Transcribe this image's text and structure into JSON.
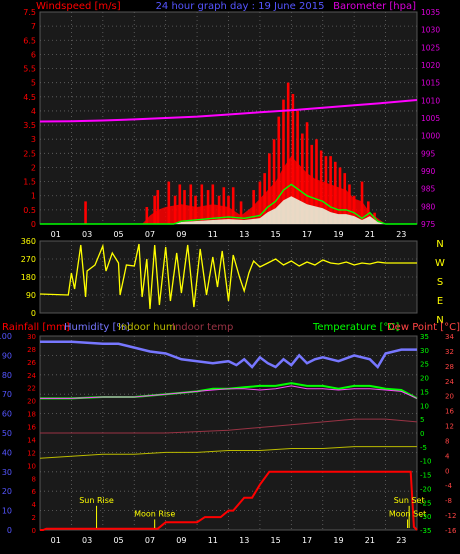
{
  "header": {
    "left_title": "Windspeed [m/s]",
    "center_title": "24 hour graph day : 19 June 2015",
    "right_title": "Barometer [hpa]"
  },
  "colors": {
    "wind": "#ff0000",
    "gust": "#ff0000",
    "avg_wind": "#00ff00",
    "barometer": "#ff00ff",
    "direction": "#ffff00",
    "rainfall": "#ff0000",
    "humidity": "#7777ff",
    "indoor_hum": "#bbbb00",
    "indoor_temp": "#993344",
    "temperature": "#00ff00",
    "dew_point": "#ff4444",
    "grid": "#666666",
    "axis_left_blue": "#5555ff",
    "axis_purple": "#dd00dd",
    "chart_bg": "#1a1a1a"
  },
  "x_ticks": [
    "01",
    "03",
    "05",
    "07",
    "09",
    "11",
    "13",
    "15",
    "17",
    "19",
    "21",
    "23"
  ],
  "chart_data": [
    {
      "type": "line",
      "id": "wind-barometer",
      "x_unit": "hour",
      "xlim": [
        0,
        24
      ],
      "ylabel_left": "Windspeed [m/s]",
      "ylabel_right": "Barometer [hpa]",
      "ylim_left": [
        0,
        7.5
      ],
      "ylim_right": [
        975,
        1035
      ],
      "yticks_left": [
        "0",
        "0.5",
        "1",
        "1.5",
        "2",
        "2.5",
        "3",
        "3.5",
        "4",
        "4.5",
        "5",
        "5.5",
        "6",
        "6.5",
        "7",
        "7.5"
      ],
      "yticks_right": [
        "975",
        "980",
        "985",
        "990",
        "995",
        "1000",
        "1005",
        "1010",
        "1015",
        "1020",
        "1025",
        "1030",
        "1035"
      ],
      "grid": true,
      "series": [
        {
          "name": "gust",
          "color": "#ff0000",
          "style": "bars",
          "x": [
            2.9,
            6.8,
            7.3,
            7.5,
            8.2,
            8.6,
            8.9,
            9.2,
            9.6,
            9.9,
            10.3,
            10.7,
            11.0,
            11.4,
            11.7,
            12.0,
            12.3,
            12.8,
            13.6,
            14.0,
            14.3,
            14.6,
            14.9,
            15.2,
            15.5,
            15.8,
            16.1,
            16.4,
            16.7,
            17.0,
            17.3,
            17.6,
            17.9,
            18.2,
            18.5,
            18.8,
            19.1,
            19.4,
            19.7,
            20.0,
            20.5,
            20.9,
            21.3
          ],
          "y": [
            0.8,
            0.6,
            1.0,
            1.2,
            1.5,
            1.0,
            1.4,
            1.2,
            1.4,
            1.0,
            1.4,
            1.2,
            1.4,
            1.0,
            1.3,
            1.0,
            1.3,
            0.8,
            1.2,
            1.5,
            1.8,
            2.5,
            3.0,
            3.8,
            4.4,
            5.0,
            4.6,
            4.0,
            3.2,
            3.6,
            2.8,
            3.0,
            2.6,
            2.4,
            2.4,
            2.2,
            2.0,
            1.8,
            1.4,
            1.0,
            1.5,
            0.8,
            0.4
          ]
        },
        {
          "name": "wind",
          "color": "#ff0000",
          "style": "area",
          "x": [
            0,
            6.5,
            7.0,
            7.5,
            8.0,
            9.0,
            10.0,
            11.0,
            12.0,
            12.8,
            13.5,
            14.0,
            14.5,
            15.0,
            15.5,
            16.0,
            16.5,
            17.0,
            17.5,
            18.0,
            18.5,
            19.0,
            19.5,
            20.0,
            20.5,
            21.0,
            21.5,
            22.0,
            24
          ],
          "y": [
            0,
            0,
            0.3,
            0.5,
            0.6,
            0.7,
            0.6,
            0.7,
            0.6,
            0.3,
            0.6,
            0.9,
            1.2,
            1.5,
            2.0,
            2.4,
            2.1,
            1.8,
            1.6,
            1.5,
            1.4,
            1.3,
            1.2,
            0.9,
            0.8,
            0.4,
            0.2,
            0,
            0
          ]
        },
        {
          "name": "avg_wind",
          "color": "#00ff00",
          "style": "line",
          "x": [
            0,
            8.5,
            9.0,
            10.0,
            11.0,
            12.0,
            13.0,
            14.0,
            14.5,
            15.0,
            15.5,
            16.0,
            16.5,
            17.0,
            17.5,
            18.0,
            18.5,
            19.0,
            19.5,
            20.0,
            20.5,
            21.0,
            21.5,
            22.0,
            24
          ],
          "y": [
            0,
            0,
            0.1,
            0.15,
            0.2,
            0.25,
            0.2,
            0.3,
            0.6,
            0.8,
            1.2,
            1.4,
            1.2,
            1.0,
            0.9,
            0.8,
            0.6,
            0.5,
            0.5,
            0.4,
            0.2,
            0.4,
            0.1,
            0,
            0
          ]
        },
        {
          "name": "barometer",
          "color": "#ff00ff",
          "style": "line",
          "axis": "right",
          "x": [
            0,
            2,
            4,
            6,
            8,
            10,
            12,
            14,
            16,
            18,
            20,
            22,
            24
          ],
          "y": [
            1004.0,
            1004.1,
            1004.3,
            1004.6,
            1005.0,
            1005.4,
            1006.0,
            1006.6,
            1007.2,
            1007.9,
            1008.6,
            1009.3,
            1010.1
          ]
        }
      ]
    },
    {
      "type": "line",
      "id": "wind-direction",
      "xlim": [
        0,
        24
      ],
      "ylim": [
        0,
        360
      ],
      "yticks": [
        "0",
        "90",
        "180",
        "270",
        "360"
      ],
      "right_labels": [
        "N",
        "W",
        "S",
        "E",
        "N"
      ],
      "grid": true,
      "series": [
        {
          "name": "direction",
          "color": "#ffff00",
          "x": [
            0,
            1.8,
            2.0,
            2.2,
            2.6,
            2.9,
            3.0,
            3.5,
            4.0,
            4.2,
            4.6,
            5.0,
            5.1,
            5.5,
            6.0,
            6.3,
            6.5,
            6.8,
            7.0,
            7.3,
            7.6,
            8.0,
            8.3,
            8.7,
            9.0,
            9.4,
            9.8,
            10.2,
            10.6,
            11.0,
            11.3,
            11.6,
            12.0,
            12.3,
            12.7,
            13.0,
            13.3,
            13.6,
            14.0,
            14.5,
            15.0,
            15.5,
            16.0,
            16.5,
            17.0,
            17.5,
            18.0,
            18.5,
            19.0,
            19.5,
            20.0,
            20.5,
            21.0,
            21.5,
            22.0,
            23.0,
            24
          ],
          "y": [
            95,
            90,
            200,
            120,
            340,
            80,
            210,
            240,
            335,
            210,
            300,
            250,
            90,
            240,
            235,
            345,
            80,
            270,
            20,
            340,
            40,
            330,
            60,
            300,
            100,
            340,
            30,
            320,
            90,
            280,
            130,
            310,
            60,
            290,
            180,
            110,
            200,
            260,
            230,
            250,
            270,
            240,
            260,
            235,
            255,
            240,
            265,
            250,
            245,
            255,
            240,
            250,
            245,
            255,
            250,
            250,
            250
          ]
        }
      ]
    },
    {
      "type": "line",
      "id": "temp-hum-rain",
      "xlim": [
        0,
        24
      ],
      "labels": {
        "rainfall": "Rainfall [mm]",
        "humidity": "Humidity [%]",
        "indoor_hum": "Indoor hum",
        "indoor_temp": "Indoor temp",
        "temperature": "Temperature [°C]",
        "dew_point": "Dew Point [°C]"
      },
      "yticks_humidity": [
        "0",
        "10",
        "20",
        "30",
        "40",
        "50",
        "60",
        "70",
        "80",
        "90",
        "100"
      ],
      "yticks_rain": [
        "0",
        "2",
        "4",
        "6",
        "8",
        "10",
        "12",
        "14",
        "16",
        "18",
        "20",
        "22",
        "24",
        "26",
        "28",
        "30"
      ],
      "yticks_temperature": [
        "-35",
        "-30",
        "-25",
        "-20",
        "-15",
        "-10",
        "-5",
        "0",
        "5",
        "10",
        "15",
        "20",
        "25",
        "30",
        "35"
      ],
      "yticks_dew_point": [
        "-16",
        "-12",
        "-8",
        "-4",
        "0",
        "4",
        "8",
        "12",
        "16",
        "20",
        "24",
        "28",
        "32",
        "34"
      ],
      "ylim_humidity": [
        0,
        100
      ],
      "ylim_rain": [
        0,
        30
      ],
      "ylim_temperature": [
        -35,
        35
      ],
      "grid": true,
      "series": [
        {
          "name": "Humidity",
          "color": "#7777ff",
          "axis": "humidity",
          "x": [
            0,
            2,
            4,
            5,
            6,
            7,
            8,
            9,
            10,
            11,
            12,
            12.5,
            13,
            13.5,
            14,
            14.5,
            15,
            15.5,
            16,
            16.5,
            17,
            17.5,
            18,
            19,
            20,
            21,
            21.5,
            22,
            23,
            24
          ],
          "y": [
            97,
            97,
            96,
            96,
            94,
            92,
            91,
            88,
            87,
            86,
            87,
            85,
            88,
            84,
            89,
            86,
            84,
            88,
            85,
            90,
            86,
            88,
            89,
            87,
            90,
            88,
            84,
            91,
            93,
            93
          ]
        },
        {
          "name": "Indoor hum",
          "color": "#bbbb00",
          "axis": "humidity",
          "x": [
            0,
            2,
            4,
            6,
            8,
            10,
            12,
            14,
            16,
            18,
            20,
            22,
            24
          ],
          "y": [
            37,
            38,
            39,
            39,
            40,
            40,
            41,
            41,
            42,
            42,
            43,
            43,
            43
          ]
        },
        {
          "name": "Indoor temp",
          "color": "#993344",
          "axis": "temperature",
          "x": [
            0,
            4,
            8,
            12,
            16,
            20,
            22,
            24
          ],
          "y": [
            0,
            0,
            0,
            1,
            3,
            5,
            5,
            4
          ]
        },
        {
          "name": "Temperature",
          "color": "#00ff00",
          "axis": "temperature",
          "x": [
            0,
            2,
            4,
            6,
            8,
            10,
            11,
            12,
            13,
            14,
            15,
            16,
            17,
            18,
            19,
            20,
            21,
            22,
            23,
            24
          ],
          "y": [
            12.5,
            12.5,
            13,
            13,
            14,
            15,
            16,
            16,
            16.5,
            17,
            17,
            18,
            17,
            17,
            16,
            17,
            17,
            16,
            15.5,
            12.5
          ]
        },
        {
          "name": "Dew Point",
          "color": "#ff44ff",
          "axis": "temperature",
          "x": [
            0,
            2,
            4,
            6,
            8,
            10,
            11,
            12,
            13,
            14,
            15,
            16,
            17,
            18,
            19,
            20,
            21,
            22,
            23,
            24
          ],
          "y": [
            12.5,
            12.5,
            13,
            13,
            14,
            15,
            15.5,
            16,
            16,
            15.5,
            16,
            17,
            16,
            16,
            15.5,
            16,
            16,
            15.5,
            15,
            12.5
          ]
        },
        {
          "name": "Rainfall",
          "color": "#ff0000",
          "axis": "rain",
          "x": [
            0,
            0.2,
            0.4,
            7.5,
            8.0,
            10.0,
            10.5,
            11.5,
            12.0,
            12.3,
            13.0,
            13.5,
            14.0,
            14.6,
            15.0,
            20.0,
            21.0,
            23.0,
            23.6,
            23.8,
            24
          ],
          "y": [
            0,
            0,
            0.2,
            0.2,
            1.2,
            1.2,
            2.0,
            2.0,
            3.0,
            3.0,
            5.0,
            5.0,
            7.0,
            9.0,
            9.0,
            9.0,
            9.0,
            9.0,
            9.0,
            0.5,
            0
          ]
        }
      ],
      "annotations": [
        {
          "label": "Sun Rise",
          "x": 3.6,
          "y_level": 0.86
        },
        {
          "label": "Moon Rise",
          "x": 7.3,
          "y_level": 0.93
        },
        {
          "label": "Sun Set",
          "x": 23.5,
          "y_level": 0.86
        },
        {
          "label": "Moon Set",
          "x": 23.4,
          "y_level": 0.93
        }
      ]
    }
  ]
}
